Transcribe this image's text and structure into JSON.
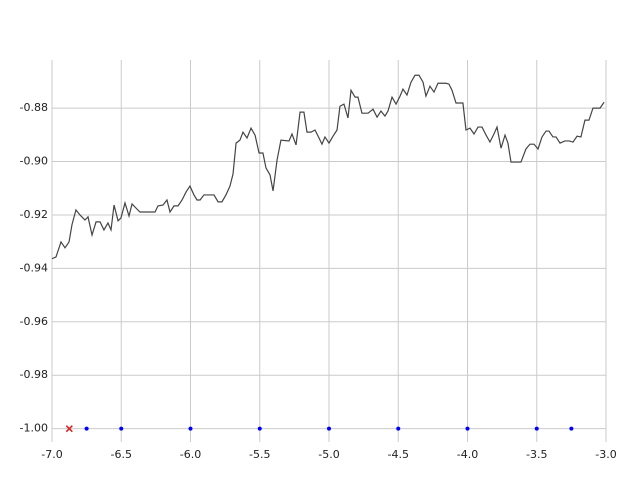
{
  "chart_data": {
    "type": "line",
    "xlim": [
      -7.0,
      -3.0
    ],
    "ylim": [
      -1.005,
      -0.856
    ],
    "xticks": [
      {
        "value": -7.0,
        "label": "-7.0"
      },
      -6.5,
      {
        "value": -6.0,
        "label": "-6.0"
      },
      -5.5,
      {
        "value": -5.0,
        "label": "-5.0"
      },
      -4.5,
      {
        "value": -4.0,
        "label": "-4.0"
      },
      -3.5,
      {
        "value": -3.0,
        "label": "-3.0"
      }
    ],
    "yticks": [
      {
        "value": -1.0,
        "label": "-1.00"
      },
      -0.98,
      -0.96,
      -0.94,
      -0.92,
      {
        "value": -0.9,
        "label": "-0.90"
      },
      -0.88
    ],
    "grid": true,
    "series": [
      {
        "type": "line",
        "color": "#444444",
        "x": [
          -7.0,
          -6.971,
          -6.935,
          -6.906,
          -6.877,
          -6.856,
          -6.827,
          -6.798,
          -6.762,
          -6.74,
          -6.711,
          -6.682,
          -6.653,
          -6.625,
          -6.596,
          -6.574,
          -6.552,
          -6.523,
          -6.502,
          -6.473,
          -6.444,
          -6.422,
          -6.394,
          -6.365,
          -6.292,
          -6.256,
          -6.235,
          -6.199,
          -6.17,
          -6.148,
          -6.119,
          -6.09,
          -6.061,
          -6.032,
          -6.004,
          -5.975,
          -5.953,
          -5.931,
          -5.903,
          -5.859,
          -5.83,
          -5.801,
          -5.773,
          -5.744,
          -5.715,
          -5.693,
          -5.671,
          -5.643,
          -5.621,
          -5.592,
          -5.563,
          -5.534,
          -5.505,
          -5.477,
          -5.455,
          -5.426,
          -5.404,
          -5.375,
          -5.347,
          -5.289,
          -5.267,
          -5.238,
          -5.209,
          -5.181,
          -5.159,
          -5.13,
          -5.101,
          -5.072,
          -5.051,
          -5.029,
          -5.0,
          -4.971,
          -4.942,
          -4.921,
          -4.892,
          -4.863,
          -4.841,
          -4.812,
          -4.791,
          -4.762,
          -4.718,
          -4.682,
          -4.653,
          -4.625,
          -4.596,
          -4.574,
          -4.545,
          -4.516,
          -4.487,
          -4.466,
          -4.437,
          -4.408,
          -4.379,
          -4.35,
          -4.321,
          -4.3,
          -4.271,
          -4.242,
          -4.213,
          -4.155,
          -4.134,
          -4.112,
          -4.083,
          -4.033,
          -4.011,
          -3.982,
          -3.953,
          -3.924,
          -3.895,
          -3.866,
          -3.838,
          -3.809,
          -3.787,
          -3.758,
          -3.729,
          -3.708,
          -3.686,
          -3.614,
          -3.578,
          -3.549,
          -3.52,
          -3.491,
          -3.462,
          -3.433,
          -3.412,
          -3.383,
          -3.361,
          -3.332,
          -3.296,
          -3.267,
          -3.238,
          -3.209,
          -3.181,
          -3.152,
          -3.123,
          -3.094,
          -3.043,
          -3.014
        ],
        "values": [
          -0.9364,
          -0.9357,
          -0.9301,
          -0.9323,
          -0.9301,
          -0.9237,
          -0.9181,
          -0.92,
          -0.9219,
          -0.9207,
          -0.9275,
          -0.9226,
          -0.9226,
          -0.9256,
          -0.923,
          -0.9256,
          -0.9163,
          -0.9222,
          -0.9211,
          -0.9155,
          -0.9204,
          -0.9159,
          -0.9174,
          -0.9189,
          -0.9189,
          -0.9189,
          -0.9166,
          -0.9163,
          -0.9144,
          -0.9189,
          -0.9166,
          -0.9166,
          -0.9144,
          -0.9114,
          -0.9092,
          -0.9125,
          -0.9144,
          -0.9144,
          -0.9125,
          -0.9125,
          -0.9125,
          -0.9151,
          -0.9151,
          -0.9125,
          -0.9092,
          -0.9047,
          -0.8931,
          -0.892,
          -0.889,
          -0.8912,
          -0.8875,
          -0.8901,
          -0.8968,
          -0.8968,
          -0.9024,
          -0.905,
          -0.911,
          -0.8994,
          -0.892,
          -0.8923,
          -0.8897,
          -0.8938,
          -0.8815,
          -0.8815,
          -0.889,
          -0.889,
          -0.8882,
          -0.8912,
          -0.8935,
          -0.8908,
          -0.8931,
          -0.8905,
          -0.8882,
          -0.8793,
          -0.8785,
          -0.8837,
          -0.8733,
          -0.8759,
          -0.8759,
          -0.8819,
          -0.8819,
          -0.8804,
          -0.8834,
          -0.8811,
          -0.883,
          -0.8811,
          -0.8759,
          -0.8785,
          -0.8755,
          -0.8729,
          -0.8751,
          -0.8703,
          -0.8677,
          -0.8677,
          -0.8703,
          -0.8755,
          -0.8718,
          -0.874,
          -0.8707,
          -0.8707,
          -0.871,
          -0.8733,
          -0.8781,
          -0.8781,
          -0.8882,
          -0.8875,
          -0.8897,
          -0.8871,
          -0.8871,
          -0.8901,
          -0.8927,
          -0.8897,
          -0.8871,
          -0.895,
          -0.8901,
          -0.8931,
          -0.9002,
          -0.9002,
          -0.8953,
          -0.8935,
          -0.8935,
          -0.8953,
          -0.8908,
          -0.8886,
          -0.8886,
          -0.8908,
          -0.8908,
          -0.8931,
          -0.8923,
          -0.8923,
          -0.8927,
          -0.8905,
          -0.8908,
          -0.8845,
          -0.8845,
          -0.88,
          -0.88,
          -0.8778
        ]
      },
      {
        "type": "scatter",
        "marker": "dot",
        "color": "#0000ff",
        "x": [
          -6.75,
          -6.5,
          -6.0,
          -5.5,
          -5.0,
          -4.5,
          -4.0,
          -3.5,
          -3.25
        ],
        "values": [
          -1.0,
          -1.0,
          -1.0,
          -1.0,
          -1.0,
          -1.0,
          -1.0,
          -1.0,
          -1.0
        ]
      },
      {
        "type": "scatter",
        "marker": "x",
        "color": "#d62728",
        "x": [
          -6.875
        ],
        "values": [
          -1.0
        ]
      }
    ]
  }
}
